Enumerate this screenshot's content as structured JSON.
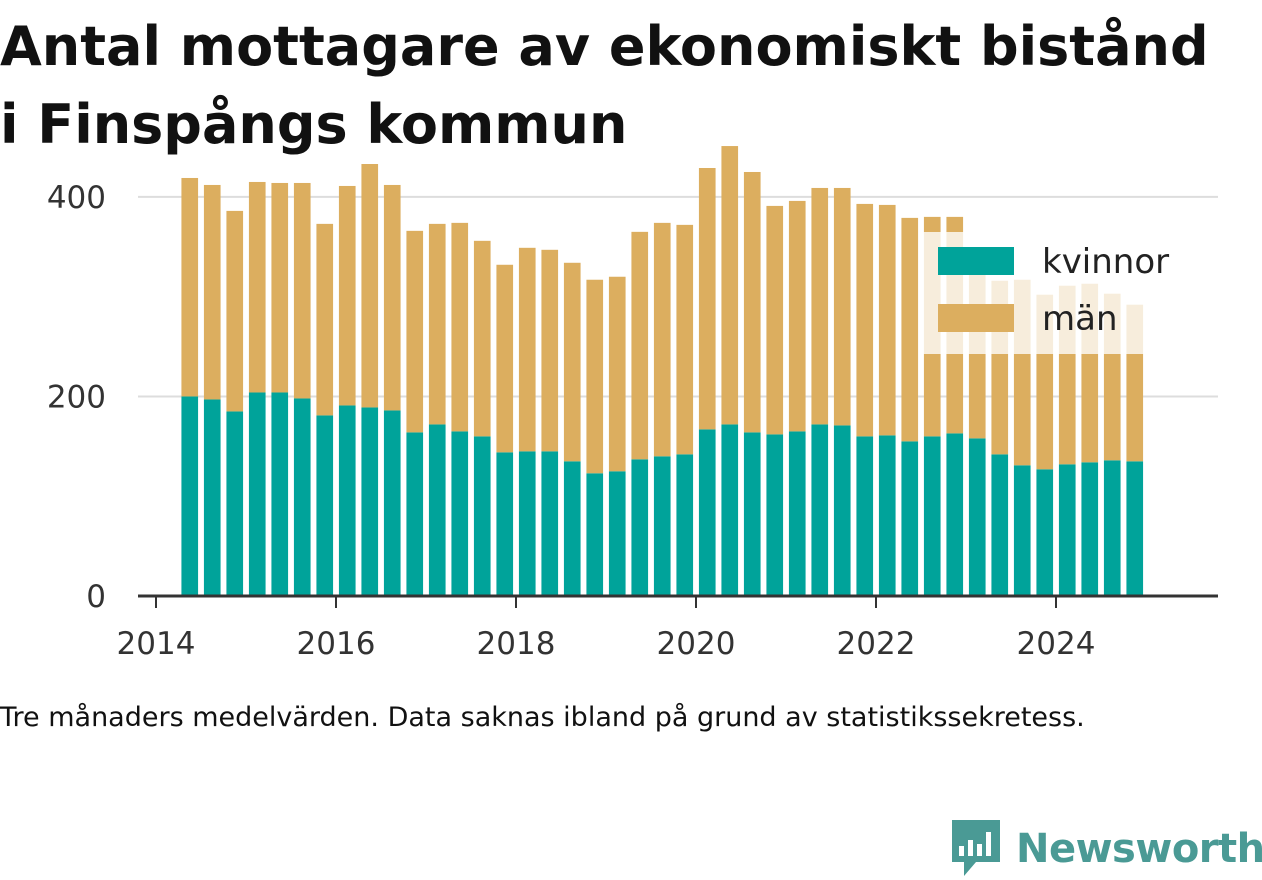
{
  "title_line1": "Antal mottagare av ekonomiskt bistånd",
  "title_line2": "i Finspångs kommun",
  "caption": "Tre månaders medelvärden. Data saknas ibland på grund av statistikssekretess.",
  "brand": "Newsworthy",
  "colors": {
    "kvinnor": "#00a39a",
    "man": "#dcae5f",
    "grid": "#dddddd",
    "axis": "#333333",
    "brand": "#4a9a95"
  },
  "chart_data": {
    "type": "bar",
    "stacked": true,
    "x_unit": "quarter (decimal year)",
    "xlim": [
      2013.8,
      2025.8
    ],
    "ylim": [
      0,
      430
    ],
    "y_ticks": [
      0,
      200,
      400
    ],
    "x_ticks": [
      2014,
      2016,
      2018,
      2020,
      2022,
      2024
    ],
    "x_tick_labels": [
      "2014",
      "2016",
      "2018",
      "2020",
      "2022",
      "2024"
    ],
    "legend": {
      "position": "top-right",
      "labels": [
        "kvinnor",
        "män"
      ]
    },
    "grid": true,
    "x": [
      2014.375,
      2014.625,
      2014.875,
      2015.125,
      2015.375,
      2015.625,
      2015.875,
      2016.125,
      2016.375,
      2016.625,
      2016.875,
      2017.125,
      2017.375,
      2017.625,
      2017.875,
      2018.125,
      2018.375,
      2018.625,
      2018.875,
      2019.125,
      2019.375,
      2019.625,
      2019.875,
      2020.125,
      2020.375,
      2020.625,
      2020.875,
      2021.125,
      2021.375,
      2021.625,
      2021.875,
      2022.125,
      2022.375,
      2022.625,
      2022.875,
      2023.125,
      2023.375,
      2023.625,
      2023.875,
      2024.125,
      2024.375,
      2024.625,
      2024.875
    ],
    "series": [
      {
        "name": "kvinnor",
        "values": [
          200,
          197,
          185,
          204,
          204,
          198,
          181,
          191,
          189,
          186,
          164,
          172,
          165,
          160,
          144,
          145,
          145,
          135,
          123,
          125,
          137,
          140,
          142,
          167,
          172,
          164,
          162,
          165,
          172,
          171,
          160,
          161,
          155,
          160,
          163,
          158,
          142,
          131,
          127,
          132,
          134,
          136,
          135
        ]
      },
      {
        "name": "män",
        "values": [
          219,
          215,
          201,
          211,
          210,
          216,
          192,
          220,
          244,
          226,
          202,
          201,
          209,
          196,
          188,
          204,
          202,
          199,
          194,
          195,
          228,
          234,
          230,
          262,
          279,
          261,
          229,
          231,
          237,
          238,
          233,
          231,
          224,
          220,
          217,
          175,
          174,
          186,
          175,
          179,
          179,
          167,
          157
        ]
      }
    ]
  }
}
